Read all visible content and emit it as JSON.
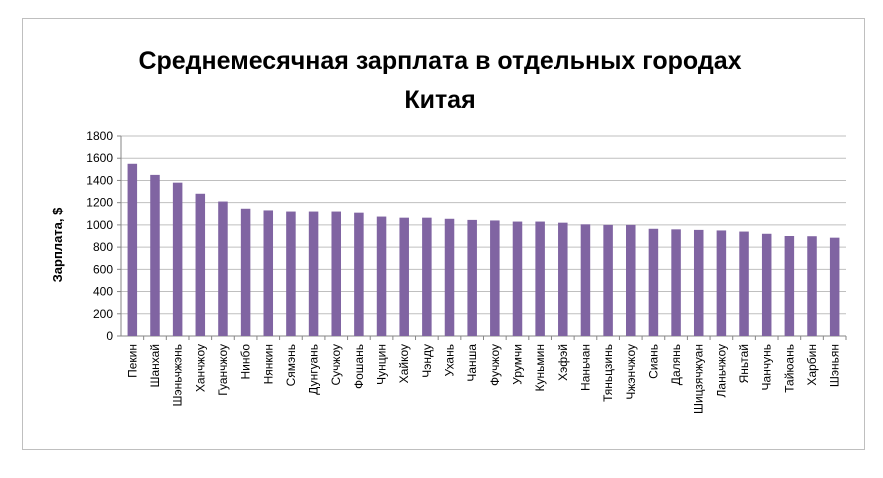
{
  "chart_data": {
    "type": "bar",
    "title_lines": [
      "Среднемесячная зарплата в отдельных городах",
      "Китая"
    ],
    "xlabel": "",
    "ylabel": "Зарплата, $",
    "ylim": [
      0,
      1800
    ],
    "yticks": [
      0,
      200,
      400,
      600,
      800,
      1000,
      1200,
      1400,
      1600,
      1800
    ],
    "grid": true,
    "legend": "none",
    "bar_color": "#8064a2",
    "categories": [
      "Пекин",
      "Шанхай",
      "Шэньчжэнь",
      "Ханчжоу",
      "Гуанчжоу",
      "Нинбо",
      "Нянкин",
      "Сямэнь",
      "Дунгуань",
      "Сучжоу",
      "Фошань",
      "Чунцин",
      "Хайкоу",
      "Чэнду",
      "Ухань",
      "Чанша",
      "Фучжоу",
      "Урумчи",
      "Куньмин",
      "Хэфэй",
      "Наньчан",
      "Тяньцзинь",
      "Чжэнчжоу",
      "Сиань",
      "Далянь",
      "Шицзячжуан",
      "Ланьчжоу",
      "Яньтай",
      "Чанчунь",
      "Тайюань",
      "Харбин",
      "Шэньян"
    ],
    "values": [
      1550,
      1450,
      1380,
      1280,
      1210,
      1145,
      1130,
      1120,
      1120,
      1120,
      1110,
      1075,
      1065,
      1065,
      1055,
      1045,
      1040,
      1030,
      1030,
      1020,
      1005,
      1000,
      1000,
      965,
      960,
      955,
      950,
      940,
      920,
      900,
      898,
      885
    ]
  }
}
